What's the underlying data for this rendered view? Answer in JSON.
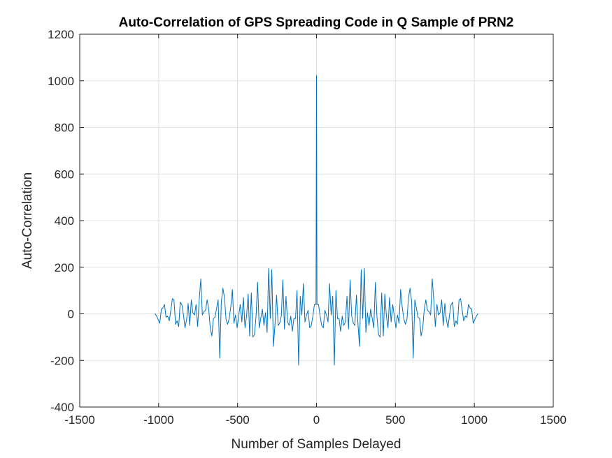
{
  "chart_data": {
    "type": "line",
    "title": "Auto-Correlation of GPS Spreading Code in Q Sample of PRN2",
    "xlabel": "Number of Samples Delayed",
    "ylabel": "Auto-Correlation",
    "xlim": [
      -1500,
      1500
    ],
    "ylim": [
      -400,
      1200
    ],
    "xticks": [
      -1500,
      -1000,
      -500,
      0,
      500,
      1000,
      1500
    ],
    "yticks": [
      -400,
      -200,
      0,
      200,
      400,
      600,
      800,
      1000,
      1200
    ],
    "xtick_labels": [
      "-1500",
      "-1000",
      "-500",
      "0",
      "500",
      "1000",
      "1500"
    ],
    "ytick_labels": [
      "-400",
      "-200",
      "0",
      "200",
      "400",
      "600",
      "800",
      "1000",
      "1200"
    ],
    "grid": true,
    "line_color": "#0072BD",
    "series": [
      {
        "x": [
          -1023,
          -1013,
          -1003,
          -993,
          -983,
          -973,
          -963,
          -953,
          -943,
          -933,
          -923,
          -913,
          -903,
          -893,
          -883,
          -873,
          -863,
          -853,
          -843,
          -833,
          -823,
          -813,
          -803,
          -793,
          -783,
          -773,
          -763,
          -753,
          -743,
          -733,
          -723,
          -713,
          -703,
          -693,
          -683,
          -673,
          -663,
          -653,
          -643,
          -633,
          -623,
          -613,
          -603,
          -593,
          -583,
          -573,
          -563,
          -553,
          -543,
          -533,
          -523,
          -513,
          -503,
          -493,
          -483,
          -473,
          -463,
          -453,
          -443,
          -433,
          -423,
          -413,
          -403,
          -393,
          -383,
          -373,
          -363,
          -353,
          -343,
          -333,
          -323,
          -313,
          -303,
          -293,
          -283,
          -273,
          -263,
          -253,
          -243,
          -233,
          -223,
          -213,
          -203,
          -193,
          -183,
          -173,
          -163,
          -153,
          -143,
          -133,
          -123,
          -113,
          -103,
          -93,
          -83,
          -73,
          -63,
          -53,
          -43,
          -33,
          -23,
          -13,
          -3,
          0,
          3,
          13,
          23,
          33,
          43,
          53,
          63,
          73,
          83,
          93,
          103,
          113,
          123,
          133,
          143,
          153,
          163,
          173,
          183,
          193,
          203,
          213,
          223,
          233,
          243,
          253,
          263,
          273,
          283,
          293,
          303,
          313,
          323,
          333,
          343,
          353,
          363,
          373,
          383,
          393,
          403,
          413,
          423,
          433,
          443,
          453,
          463,
          473,
          483,
          493,
          503,
          513,
          523,
          533,
          543,
          553,
          563,
          573,
          583,
          593,
          603,
          613,
          623,
          633,
          643,
          653,
          663,
          673,
          683,
          693,
          703,
          713,
          723,
          733,
          743,
          753,
          763,
          773,
          783,
          793,
          803,
          813,
          823,
          833,
          843,
          853,
          863,
          873,
          883,
          893,
          903,
          913,
          923,
          933,
          943,
          953,
          963,
          973,
          983,
          993,
          1003,
          1013,
          1023
        ],
        "y": [
          1,
          -10,
          -25,
          -40,
          20,
          25,
          40,
          -15,
          -10,
          -30,
          15,
          65,
          60,
          -45,
          -30,
          -55,
          50,
          40,
          -5,
          -60,
          -25,
          45,
          -50,
          60,
          5,
          -5,
          40,
          -55,
          60,
          150,
          -5,
          10,
          15,
          60,
          20,
          -60,
          -95,
          -20,
          -15,
          25,
          60,
          -190,
          50,
          110,
          70,
          -25,
          -45,
          -20,
          30,
          105,
          -40,
          -5,
          -60,
          -10,
          40,
          -35,
          70,
          -60,
          -10,
          85,
          -95,
          90,
          -100,
          -90,
          -10,
          135,
          -60,
          -20,
          20,
          -50,
          5,
          -80,
          195,
          -20,
          190,
          -140,
          -50,
          80,
          -50,
          -40,
          -10,
          145,
          -65,
          75,
          -35,
          -50,
          -10,
          -75,
          -20,
          -20,
          100,
          -220,
          75,
          -5,
          130,
          -35,
          -5,
          15,
          -60,
          -50,
          -10,
          40,
          40,
          1023,
          40,
          40,
          -10,
          -50,
          -60,
          15,
          -5,
          -35,
          130,
          -5,
          75,
          -220,
          100,
          -20,
          -20,
          -75,
          -10,
          -50,
          -35,
          75,
          -65,
          145,
          -10,
          -40,
          -50,
          80,
          -50,
          -140,
          190,
          -20,
          195,
          -80,
          5,
          -50,
          20,
          -20,
          -60,
          135,
          -10,
          -90,
          -100,
          90,
          -95,
          85,
          -10,
          -60,
          70,
          -35,
          40,
          -10,
          -60,
          -5,
          -40,
          105,
          30,
          -20,
          -45,
          -25,
          70,
          110,
          50,
          -190,
          60,
          25,
          -15,
          -20,
          -95,
          -60,
          20,
          60,
          15,
          10,
          -5,
          150,
          60,
          -55,
          40,
          -5,
          5,
          60,
          -50,
          45,
          -25,
          -60,
          -5,
          40,
          50,
          -55,
          -30,
          -45,
          60,
          65,
          15,
          -30,
          -10,
          -15,
          40,
          25,
          20,
          -40,
          -25,
          -10,
          1
        ]
      }
    ]
  }
}
